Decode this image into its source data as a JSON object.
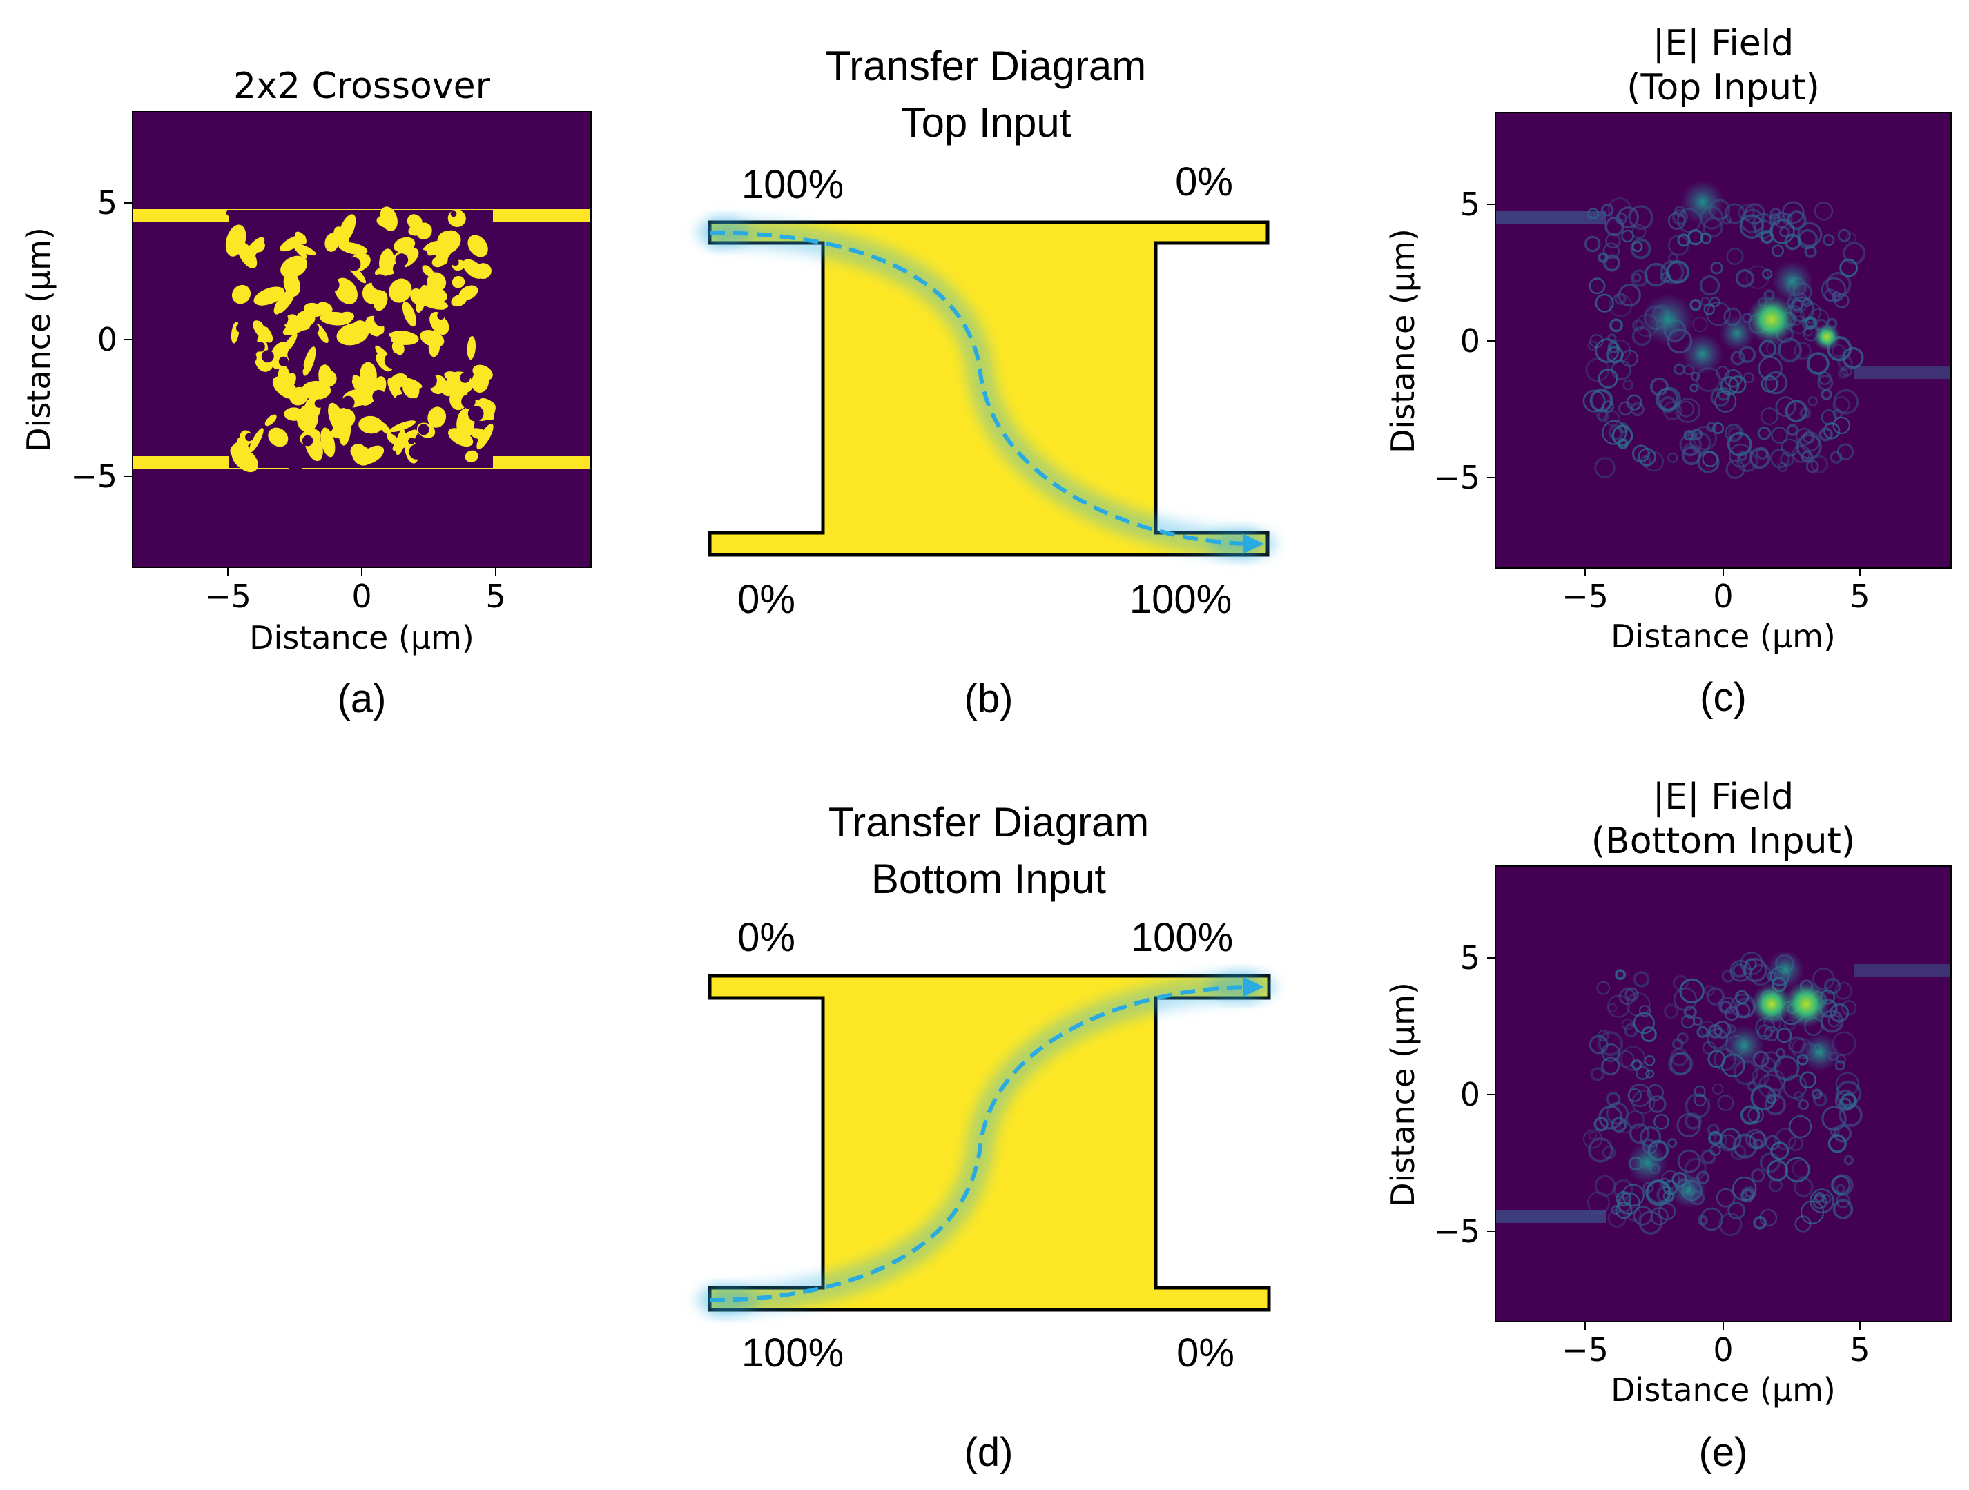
{
  "colors": {
    "viridis_dark": "#440154",
    "viridis_yellow": "#fde725",
    "diagram_fill": "#fde725",
    "arrow": "#29abe2",
    "outline": "#000000"
  },
  "panel_a": {
    "title": "2x2 Crossover",
    "xlabel": "Distance (μm)",
    "ylabel": "Distance (μm)",
    "xticks": [
      "−5",
      "0",
      "5"
    ],
    "yticks": [
      "5",
      "0",
      "−5"
    ],
    "label": "(a)"
  },
  "panel_b": {
    "title_line1": "Transfer Diagram",
    "title_line2": "Top Input",
    "top_left": "100%",
    "top_right": "0%",
    "bottom_left": "0%",
    "bottom_right": "100%",
    "label": "(b)"
  },
  "panel_c": {
    "title_line1": "|E| Field",
    "title_line2": "(Top Input)",
    "xlabel": "Distance (μm)",
    "ylabel": "Distance (μm)",
    "xticks": [
      "−5",
      "0",
      "5"
    ],
    "yticks": [
      "5",
      "0",
      "−5"
    ],
    "label": "(c)"
  },
  "panel_d": {
    "title_line1": "Transfer Diagram",
    "title_line2": "Bottom Input",
    "top_left": "0%",
    "top_right": "100%",
    "bottom_left": "100%",
    "bottom_right": "0%",
    "label": "(d)"
  },
  "panel_e": {
    "title_line1": "|E| Field",
    "title_line2": "(Bottom Input)",
    "xlabel": "Distance (μm)",
    "ylabel": "Distance (μm)",
    "xticks": [
      "−5",
      "0",
      "5"
    ],
    "yticks": [
      "5",
      "0",
      "−5"
    ],
    "label": "(e)"
  }
}
